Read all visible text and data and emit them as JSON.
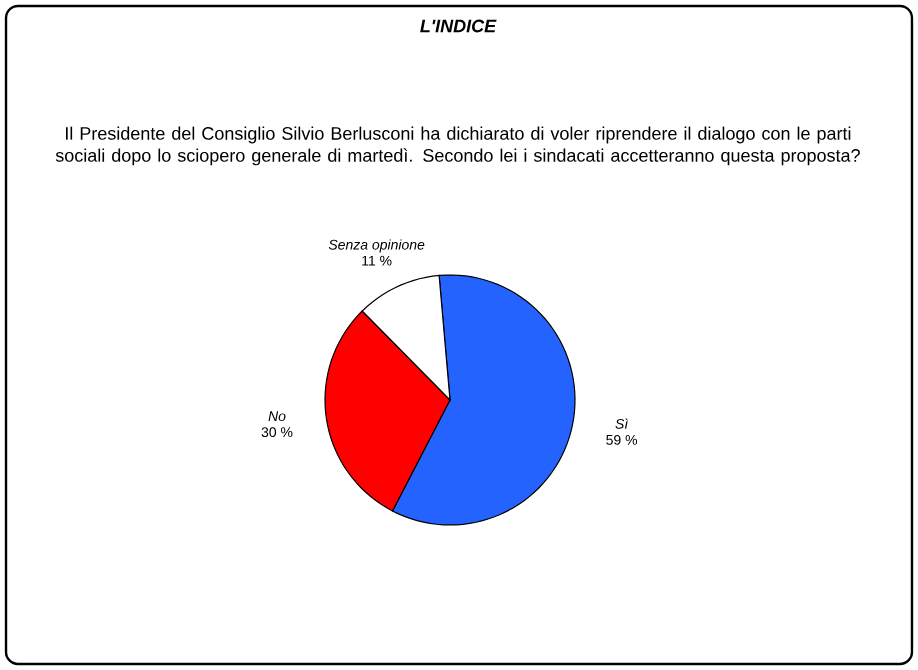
{
  "chart_data": {
    "type": "pie",
    "title": "L'INDICE",
    "subtitle": "Il Presidente del Consiglio Silvio Berlusconi ha dichiarato di voler riprendere il dialogo con le parti sociali dopo lo sciopero generale di martedì. Secondo lei i sindacati accetteranno questa proposta?",
    "categories": [
      "Sì",
      "No",
      "Senza opinione"
    ],
    "values": [
      59,
      30,
      11
    ],
    "value_labels": [
      "59 %",
      "30 %",
      "11 %"
    ],
    "colors": [
      "#2563ff",
      "#ff0000",
      "#ffffff"
    ],
    "legend": false
  }
}
